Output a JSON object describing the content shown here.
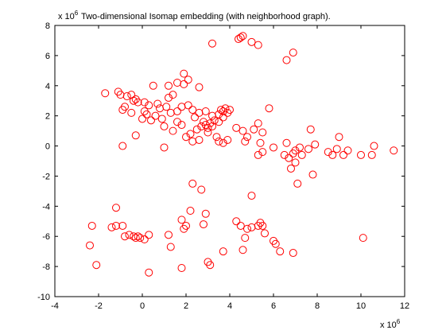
{
  "chart_data": {
    "type": "scatter",
    "title": "Two-dimensional Isomap embedding (with neighborhood graph).",
    "title_multiplier": {
      "base": "x 10",
      "exponent": "6"
    },
    "x_multiplier": {
      "base": "x 10",
      "exponent": "6"
    },
    "xlim": [
      -4,
      12
    ],
    "ylim": [
      -10,
      8
    ],
    "xticks": [
      "-4",
      "-2",
      "0",
      "2",
      "4",
      "6",
      "8",
      "10",
      "12"
    ],
    "yticks": [
      "-10",
      "-8",
      "-6",
      "-4",
      "-2",
      "0",
      "2",
      "4",
      "6",
      "8"
    ],
    "marker": "open-circle",
    "marker_color": "#ff0000",
    "series": [
      {
        "points": [
          [
            4.4,
            7.1
          ],
          [
            4.6,
            7.3
          ],
          [
            4.5,
            7.2
          ],
          [
            5.0,
            6.9
          ],
          [
            5.3,
            6.7
          ],
          [
            3.2,
            6.8
          ],
          [
            6.9,
            6.2
          ],
          [
            6.6,
            5.7
          ],
          [
            1.9,
            4.8
          ],
          [
            2.1,
            4.4
          ],
          [
            1.9,
            4.1
          ],
          [
            1.6,
            4.2
          ],
          [
            1.2,
            4.0
          ],
          [
            0.5,
            4.0
          ],
          [
            2.6,
            3.9
          ],
          [
            1.4,
            3.4
          ],
          [
            1.2,
            3.2
          ],
          [
            -1.7,
            3.5
          ],
          [
            -1.1,
            3.6
          ],
          [
            -1.0,
            3.4
          ],
          [
            -0.7,
            3.3
          ],
          [
            -0.5,
            3.4
          ],
          [
            -0.3,
            3.1
          ],
          [
            -0.4,
            3.0
          ],
          [
            -0.2,
            2.9
          ],
          [
            0.1,
            2.9
          ],
          [
            0.3,
            2.7
          ],
          [
            0.7,
            2.8
          ],
          [
            0.8,
            2.5
          ],
          [
            1.1,
            2.6
          ],
          [
            1.3,
            2.2
          ],
          [
            1.6,
            2.3
          ],
          [
            1.8,
            2.6
          ],
          [
            2.1,
            2.7
          ],
          [
            2.3,
            2.4
          ],
          [
            2.6,
            2.2
          ],
          [
            2.9,
            2.3
          ],
          [
            3.2,
            2.0
          ],
          [
            3.5,
            2.1
          ],
          [
            3.6,
            2.4
          ],
          [
            3.7,
            2.3
          ],
          [
            3.8,
            2.5
          ],
          [
            4.0,
            2.4
          ],
          [
            3.9,
            2.2
          ],
          [
            3.7,
            1.9
          ],
          [
            3.5,
            1.6
          ],
          [
            3.3,
            1.7
          ],
          [
            3.1,
            1.5
          ],
          [
            2.9,
            1.4
          ],
          [
            2.8,
            1.6
          ],
          [
            3.0,
            1.2
          ],
          [
            2.7,
            1.3
          ],
          [
            2.5,
            1.1
          ],
          [
            2.2,
            0.8
          ],
          [
            2.0,
            0.6
          ],
          [
            1.8,
            1.4
          ],
          [
            -0.8,
            2.6
          ],
          [
            -0.9,
            2.4
          ],
          [
            -0.5,
            2.2
          ],
          [
            0.1,
            2.3
          ],
          [
            0.2,
            2.1
          ],
          [
            0.0,
            1.8
          ],
          [
            0.4,
            1.7
          ],
          [
            0.6,
            2.0
          ],
          [
            0.9,
            1.8
          ],
          [
            1.0,
            1.3
          ],
          [
            1.4,
            1.0
          ],
          [
            1.6,
            1.6
          ],
          [
            2.4,
            1.9
          ],
          [
            2.6,
            0.4
          ],
          [
            2.3,
            0.3
          ],
          [
            3.0,
            0.9
          ],
          [
            3.2,
            1.3
          ],
          [
            3.4,
            0.6
          ],
          [
            3.9,
            0.4
          ],
          [
            3.7,
            0.2
          ],
          [
            3.5,
            0.3
          ],
          [
            4.3,
            1.2
          ],
          [
            4.6,
            1.0
          ],
          [
            4.8,
            0.6
          ],
          [
            4.7,
            0.3
          ],
          [
            5.1,
            1.1
          ],
          [
            5.3,
            1.5
          ],
          [
            5.5,
            0.9
          ],
          [
            5.8,
            2.5
          ],
          [
            5.4,
            0.2
          ],
          [
            5.5,
            -0.4
          ],
          [
            5.3,
            -0.6
          ],
          [
            6.0,
            -0.1
          ],
          [
            6.5,
            -0.6
          ],
          [
            6.7,
            -0.8
          ],
          [
            6.9,
            -0.5
          ],
          [
            7.0,
            -0.3
          ],
          [
            7.2,
            -0.1
          ],
          [
            7.3,
            -0.6
          ],
          [
            6.8,
            -1.5
          ],
          [
            7.0,
            -1.1
          ],
          [
            7.1,
            -2.5
          ],
          [
            7.6,
            -0.2
          ],
          [
            7.7,
            1.1
          ],
          [
            7.9,
            0.1
          ],
          [
            7.8,
            -1.9
          ],
          [
            6.6,
            0.2
          ],
          [
            8.5,
            -0.4
          ],
          [
            8.7,
            -0.6
          ],
          [
            8.9,
            -0.2
          ],
          [
            9.2,
            -0.6
          ],
          [
            9.4,
            -0.3
          ],
          [
            9.0,
            0.6
          ],
          [
            10.0,
            -0.6
          ],
          [
            10.5,
            -0.6
          ],
          [
            10.6,
            0.0
          ],
          [
            11.5,
            -0.3
          ],
          [
            -0.9,
            0.0
          ],
          [
            -0.3,
            0.7
          ],
          [
            1.0,
            -0.1
          ],
          [
            2.3,
            -2.5
          ],
          [
            2.7,
            -2.9
          ],
          [
            5.0,
            -3.3
          ],
          [
            -1.2,
            -4.1
          ],
          [
            2.2,
            -4.3
          ],
          [
            2.9,
            -4.5
          ],
          [
            -2.3,
            -5.3
          ],
          [
            -1.4,
            -5.4
          ],
          [
            -1.2,
            -5.3
          ],
          [
            -0.9,
            -5.3
          ],
          [
            -0.6,
            -5.9
          ],
          [
            -0.4,
            -6.0
          ],
          [
            -0.3,
            -6.1
          ],
          [
            -0.2,
            -6.0
          ],
          [
            -0.1,
            -6.1
          ],
          [
            0.3,
            -5.9
          ],
          [
            0.1,
            -6.2
          ],
          [
            1.2,
            -5.9
          ],
          [
            1.3,
            -6.7
          ],
          [
            0.3,
            -8.4
          ],
          [
            1.8,
            -4.9
          ],
          [
            2.0,
            -5.3
          ],
          [
            1.9,
            -5.5
          ],
          [
            1.8,
            -8.1
          ],
          [
            2.8,
            -5.2
          ],
          [
            3.0,
            -7.7
          ],
          [
            3.1,
            -7.9
          ],
          [
            3.7,
            -7.0
          ],
          [
            4.3,
            -5.0
          ],
          [
            4.5,
            -5.3
          ],
          [
            4.8,
            -5.5
          ],
          [
            4.7,
            -6.1
          ],
          [
            5.0,
            -5.4
          ],
          [
            5.3,
            -5.3
          ],
          [
            5.4,
            -5.1
          ],
          [
            5.5,
            -5.3
          ],
          [
            5.6,
            -5.8
          ],
          [
            6.0,
            -6.3
          ],
          [
            6.1,
            -6.5
          ],
          [
            6.3,
            -7.0
          ],
          [
            6.9,
            -7.1
          ],
          [
            4.6,
            -6.9
          ],
          [
            -2.4,
            -6.6
          ],
          [
            -2.1,
            -7.9
          ],
          [
            10.1,
            -6.1
          ],
          [
            -0.8,
            -6.0
          ]
        ]
      }
    ]
  }
}
